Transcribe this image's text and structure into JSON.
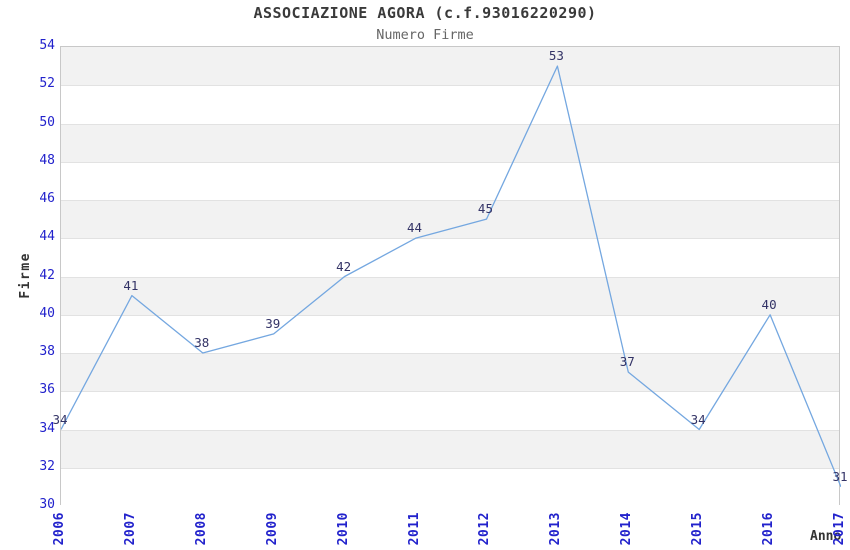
{
  "chart_data": {
    "type": "line",
    "title": "ASSOCIAZIONE AGORA (c.f.93016220290)",
    "subtitle": "Numero Firme",
    "xlabel": "Anno",
    "ylabel": "Firme",
    "categories": [
      "2006",
      "2007",
      "2008",
      "2009",
      "2010",
      "2011",
      "2012",
      "2013",
      "2014",
      "2015",
      "2016",
      "2017"
    ],
    "series": [
      {
        "name": "Numero Firme",
        "values": [
          34,
          41,
          38,
          39,
          42,
          44,
          45,
          53,
          37,
          34,
          40,
          31
        ]
      }
    ],
    "ylim": [
      30,
      54
    ],
    "ytick_step": 2,
    "data_labels": true,
    "legend": "none",
    "grid": "horizontal-alternating-bands",
    "colors": {
      "line": "#74a7e0",
      "axis_tick_labels": "#2222cc",
      "point_labels": "#333366",
      "band_alt": "#f2f2f2",
      "gridline": "#e2e2e2",
      "plot_border": "#c8c8c8",
      "title": "#3a3a3a",
      "subtitle": "#666666",
      "axis_title": "#333333"
    }
  }
}
